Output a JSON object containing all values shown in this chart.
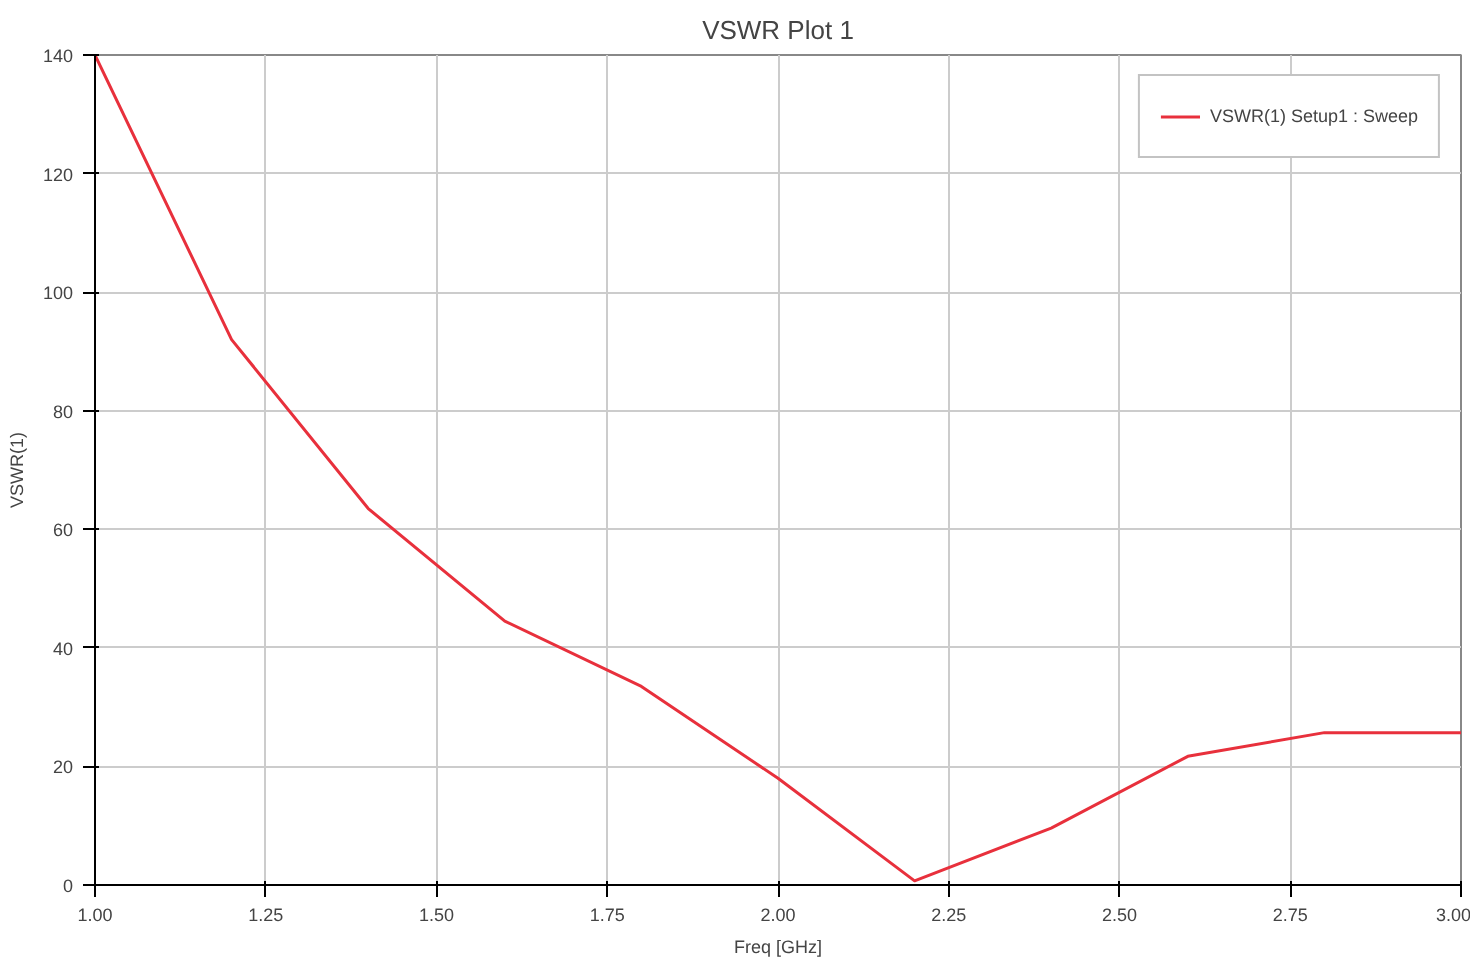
{
  "chart_data": {
    "type": "line",
    "title": "VSWR Plot 1",
    "xlabel": "Freq [GHz]",
    "ylabel": "VSWR(1)",
    "x": [
      1.0,
      1.2,
      1.4,
      1.6,
      1.8,
      2.0,
      2.2,
      2.4,
      2.6,
      2.8,
      3.0
    ],
    "series": [
      {
        "name": "VSWR(1) Setup1 : Sweep",
        "color": "#e8303c",
        "values": [
          140,
          92,
          63.5,
          44.5,
          33.5,
          18,
          0.7,
          9.6,
          21.7,
          25.7,
          25.7
        ]
      }
    ],
    "xlim": [
      1.0,
      3.0
    ],
    "ylim": [
      0,
      140
    ],
    "xticks": [
      {
        "value": 1.0,
        "label": "1.00"
      },
      {
        "value": 1.25,
        "label": "1.25"
      },
      {
        "value": 1.5,
        "label": "1.50"
      },
      {
        "value": 1.75,
        "label": "1.75"
      },
      {
        "value": 2.0,
        "label": "2.00"
      },
      {
        "value": 2.25,
        "label": "2.25"
      },
      {
        "value": 2.5,
        "label": "2.50"
      },
      {
        "value": 2.75,
        "label": "2.75"
      },
      {
        "value": 3.0,
        "label": "3.00"
      }
    ],
    "yticks": [
      0,
      20,
      40,
      60,
      80,
      100,
      120,
      140
    ],
    "grid": true,
    "legend": "top right",
    "marker": "none",
    "line_style": "solid"
  }
}
